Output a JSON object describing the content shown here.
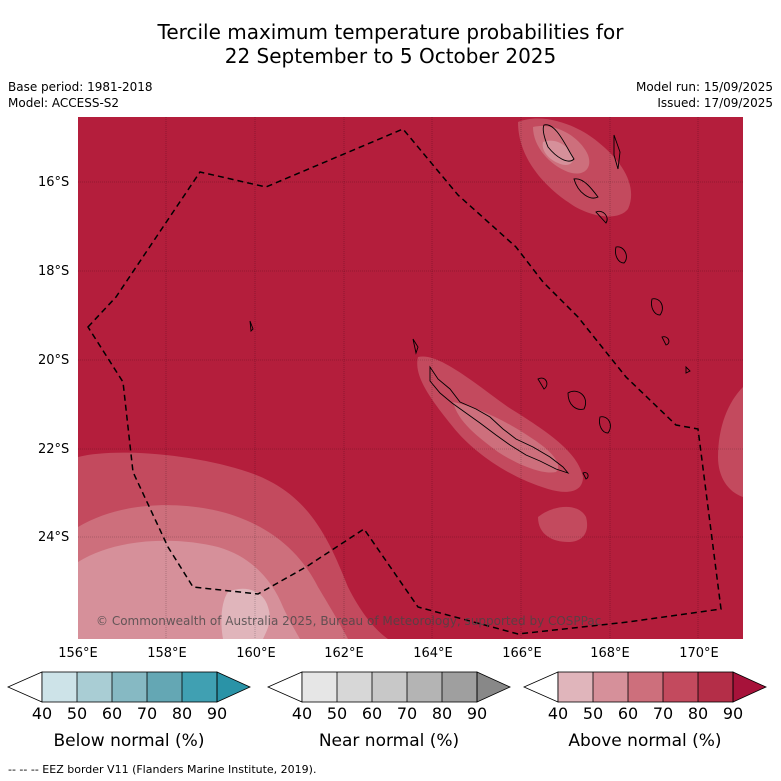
{
  "header": {
    "title_line1": "Tercile maximum temperature probabilities for",
    "title_line2": "22 September to 5 October 2025",
    "base_period": "Base period: 1981-2018",
    "model": "Model: ACCESS-S2",
    "model_run": "Model run: 15/09/2025",
    "issued": "Issued: 17/09/2025"
  },
  "map": {
    "latitude_labels": [
      "16°S",
      "18°S",
      "20°S",
      "22°S",
      "24°S"
    ],
    "longitude_labels": [
      "156°E",
      "158°E",
      "160°E",
      "162°E",
      "164°E",
      "166°E",
      "168°E",
      "170°E"
    ],
    "copyright": "© Commonwealth of Australia 2025, Bureau of Meteorology, supported by COSPPac",
    "colors": {
      "above_90": "#b41e3c",
      "above_80": "#c34a5e",
      "above_70": "#cd6f7c",
      "above_60": "#d6909a",
      "above_50": "#e0b5bb",
      "border": "#000000"
    }
  },
  "legend": {
    "tick_labels": [
      "40",
      "50",
      "60",
      "70",
      "80",
      "90"
    ],
    "below": {
      "title": "Below normal (%)",
      "colors": [
        "#ffffff",
        "#cde3e8",
        "#a9cdd4",
        "#86b9c3",
        "#64a7b4",
        "#40a0b2",
        "#2a93a7"
      ]
    },
    "near": {
      "title": "Near normal (%)",
      "colors": [
        "#ffffff",
        "#e6e6e6",
        "#d7d7d7",
        "#c8c8c8",
        "#b4b4b4",
        "#9f9f9f",
        "#888888"
      ]
    },
    "above": {
      "title": "Above normal (%)",
      "colors": [
        "#ffffff",
        "#e0b5bb",
        "#d6909a",
        "#cd6f7c",
        "#c34a5e",
        "#b42e48",
        "#a7123a"
      ]
    }
  },
  "footnote": "--  --  -- EEZ border V11 (Flanders Marine Institute, 2019)."
}
